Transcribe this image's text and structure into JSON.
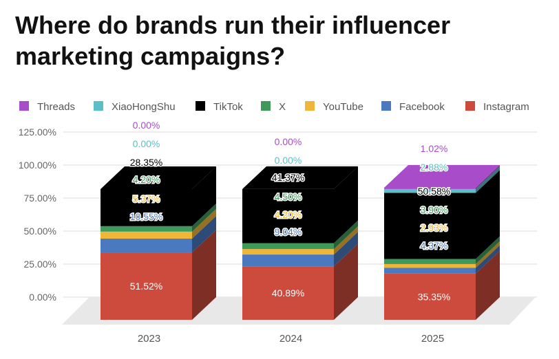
{
  "chart_data": {
    "type": "bar",
    "stacked": true,
    "style": "3d",
    "title": "Where do brands run their influencer marketing campaigns?",
    "categories": [
      "2023",
      "2024",
      "2025"
    ],
    "xlabel": "",
    "ylabel": "",
    "ylim": [
      0,
      125
    ],
    "yticks": [
      "0.00%",
      "25.00%",
      "50.00%",
      "75.00%",
      "100.00%",
      "125.00%"
    ],
    "grid": true,
    "legend_position": "top",
    "series": [
      {
        "name": "Instagram",
        "color": "#cc4b3c",
        "values": [
          51.52,
          40.89,
          35.35
        ],
        "labels": [
          "51.52%",
          "40.89%",
          "35.35%"
        ]
      },
      {
        "name": "Facebook",
        "color": "#4a79c0",
        "values": [
          10.55,
          9.04,
          4.37
        ],
        "labels": [
          "10.55%",
          "9.04%",
          "4.37%"
        ]
      },
      {
        "name": "YouTube",
        "color": "#f0b63a",
        "values": [
          5.37,
          4.2,
          2.93
        ],
        "labels": [
          "5.37%",
          "4.20%",
          "2.93%"
        ]
      },
      {
        "name": "X",
        "color": "#3f9a5a",
        "values": [
          4.2,
          4.5,
          3.9
        ],
        "labels": [
          "4.20%",
          "4.50%",
          "3.90%"
        ]
      },
      {
        "name": "TikTok",
        "color": "#000000",
        "values": [
          28.35,
          41.37,
          50.58
        ],
        "labels": [
          "28.35%",
          "41.37%",
          "50.58%"
        ]
      },
      {
        "name": "XiaoHongShu",
        "color": "#5bbfc7",
        "values": [
          0.0,
          0.0,
          2.88
        ],
        "labels": [
          "0.00%",
          "0.00%",
          "2.88%"
        ]
      },
      {
        "name": "Threads",
        "color": "#a84cc9",
        "values": [
          0.0,
          0.0,
          1.02
        ],
        "labels": [
          "0.00%",
          "0.00%",
          "1.02%"
        ]
      }
    ],
    "legend_order": [
      "Threads",
      "XiaoHongShu",
      "TikTok",
      "X",
      "YouTube",
      "Facebook",
      "Instagram"
    ],
    "label_colors": {
      "Instagram": "#ffffff",
      "Facebook": "#4a79c0",
      "YouTube": "#f0b63a",
      "X": "#3f9a5a",
      "TikTok": "#ffffff",
      "XiaoHongShu": "#5bbfc7",
      "Threads": "#a84cc9"
    }
  }
}
